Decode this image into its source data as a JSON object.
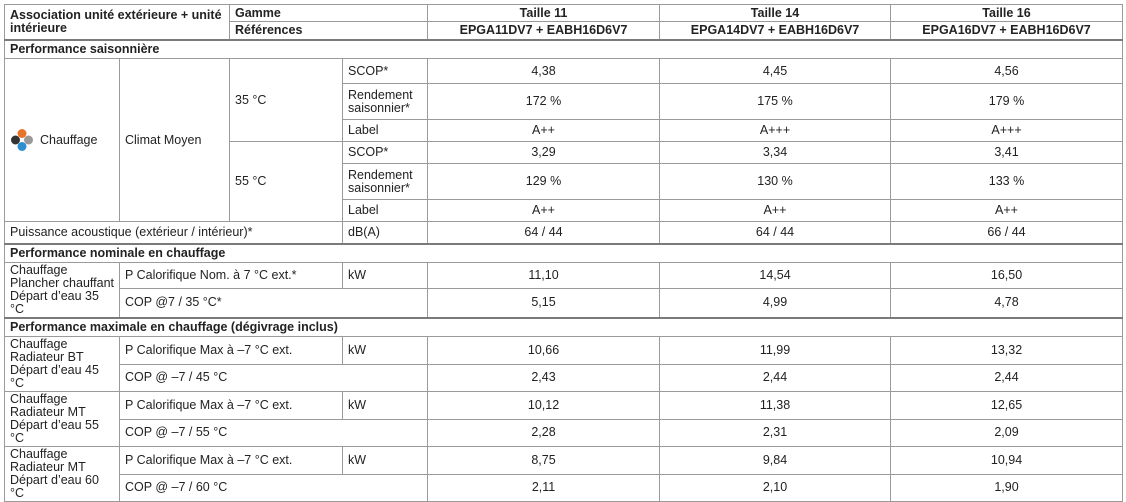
{
  "header": {
    "association": "Association unité extérieure + unité intérieure",
    "gamme_label": "Gamme",
    "references_label": "Références",
    "models": [
      {
        "gamme": "Taille 11",
        "ref": "EPGA11DV7 + EABH16D6V7"
      },
      {
        "gamme": "Taille 14",
        "ref": "EPGA14DV7 + EABH16D6V7"
      },
      {
        "gamme": "Taille 16",
        "ref": "EPGA16DV7 + EABH16D6V7"
      }
    ]
  },
  "seasonal": {
    "title": "Performance saisonnière",
    "chauffage": "Chauffage",
    "climat": "Climat Moyen",
    "temps": [
      {
        "temp": "35 °C",
        "rows": [
          {
            "label": "SCOP*",
            "values": [
              "4,38",
              "4,45",
              "4,56"
            ]
          },
          {
            "label": "Rendement saisonnier*",
            "values": [
              "172 %",
              "175 %",
              "179 %"
            ]
          },
          {
            "label": "Label",
            "values": [
              "A++",
              "A+++",
              "A+++"
            ]
          }
        ]
      },
      {
        "temp": "55 °C",
        "rows": [
          {
            "label": "SCOP*",
            "values": [
              "3,29",
              "3,34",
              "3,41"
            ]
          },
          {
            "label": "Rendement saisonnier*",
            "values": [
              "129 %",
              "130 %",
              "133 %"
            ]
          },
          {
            "label": "Label",
            "values": [
              "A++",
              "A++",
              "A++"
            ]
          }
        ]
      }
    ],
    "acoustic": {
      "label": "Puissance acoustique (extérieur / intérieur)*",
      "unit": "dB(A)",
      "values": [
        "64 / 44",
        "64 / 44",
        "66 / 44"
      ]
    }
  },
  "nominal": {
    "title": "Performance nominale en chauffage",
    "group": "Chauffage Plancher chauffant Départ d’eau 35 °C",
    "rows": [
      {
        "label": "P Calorifique Nom. à 7 °C ext.*",
        "unit": "kW",
        "values": [
          "11,10",
          "14,54",
          "16,50"
        ]
      },
      {
        "label": "COP @7 / 35 °C*",
        "unit": "",
        "values": [
          "5,15",
          "4,99",
          "4,78"
        ]
      }
    ]
  },
  "maximal": {
    "title": "Performance maximale en chauffage (dégivrage inclus)",
    "groups": [
      {
        "name": "Chauffage Radiateur BT Départ d’eau 45 °C",
        "rows": [
          {
            "label": "P Calorifique Max à –7 °C ext.",
            "unit": "kW",
            "values": [
              "10,66",
              "11,99",
              "13,32"
            ]
          },
          {
            "label": "COP @ –7 / 45 °C",
            "unit": "",
            "values": [
              "2,43",
              "2,44",
              "2,44"
            ]
          }
        ]
      },
      {
        "name": "Chauffage Radiateur MT Départ d’eau 55 °C",
        "rows": [
          {
            "label": "P Calorifique Max à –7 °C ext.",
            "unit": "kW",
            "values": [
              "10,12",
              "11,38",
              "12,65"
            ]
          },
          {
            "label": "COP @ –7 / 55 °C",
            "unit": "",
            "values": [
              "2,28",
              "2,31",
              "2,09"
            ]
          }
        ]
      },
      {
        "name": "Chauffage Radiateur MT Départ d’eau 60 °C",
        "rows": [
          {
            "label": "P Calorifique Max à –7 °C ext.",
            "unit": "kW",
            "values": [
              "8,75",
              "9,84",
              "10,94"
            ]
          },
          {
            "label": "COP @ –7 / 60 °C",
            "unit": "",
            "values": [
              "2,11",
              "2,10",
              "1,90"
            ]
          }
        ]
      }
    ]
  },
  "colors": {
    "logo_orange": "#e8742a",
    "logo_blue": "#2e8fd0",
    "logo_dark": "#333333",
    "logo_grey": "#999999"
  },
  "icons": {
    "logo": "chauffage-logo-icon"
  }
}
